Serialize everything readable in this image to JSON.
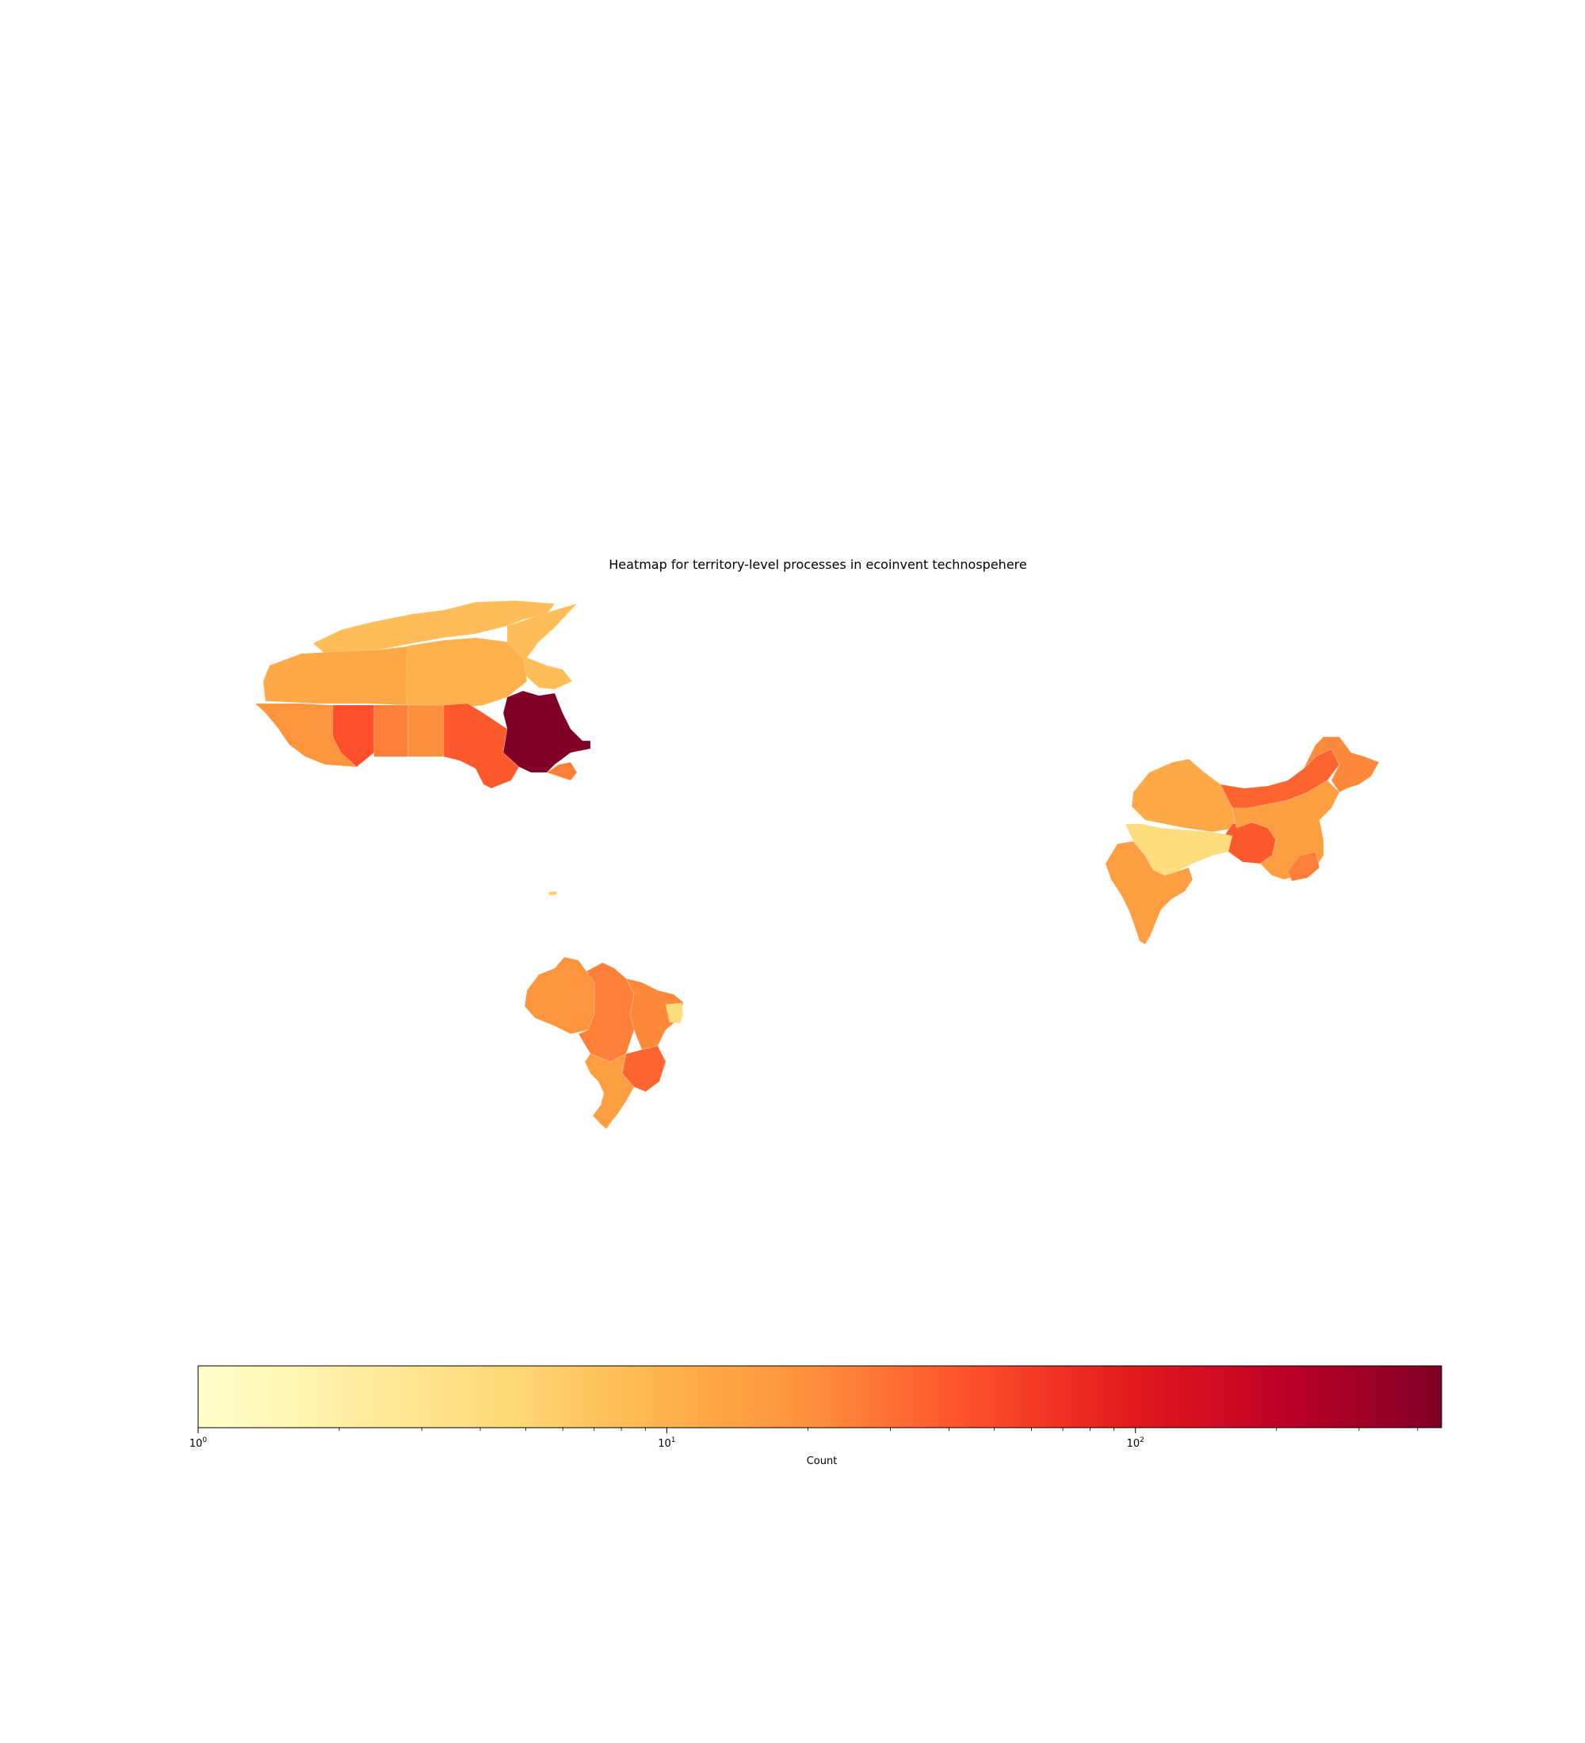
{
  "chart_data": {
    "type": "choropleth",
    "title": "Heatmap for territory-level processes in ecoinvent technospehere",
    "colormap": "YlOrRd",
    "colorbar": {
      "label": "Count",
      "scale": "log",
      "range": [
        1,
        450
      ],
      "orientation": "horizontal",
      "placement": "bottom",
      "ticks": [
        {
          "base": "10",
          "exp": "0",
          "value": 1
        },
        {
          "base": "10",
          "exp": "1",
          "value": 10
        },
        {
          "base": "10",
          "exp": "2",
          "value": 100
        }
      ]
    },
    "regions": [
      {
        "id": "canada-north-territories",
        "value": 8
      },
      {
        "id": "canada-north-islands",
        "value": 8
      },
      {
        "id": "canada-nw-territories",
        "value": 12
      },
      {
        "id": "canada-nunavut-mainland",
        "value": 10
      },
      {
        "id": "canada-west-coast",
        "value": 18
      },
      {
        "id": "canada-prairie-a",
        "value": 45
      },
      {
        "id": "canada-prairie-b",
        "value": 25
      },
      {
        "id": "canada-prairie-c",
        "value": 20
      },
      {
        "id": "canada-ontario",
        "value": 40
      },
      {
        "id": "canada-quebec",
        "value": 450
      },
      {
        "id": "canada-atlantic",
        "value": 25
      },
      {
        "id": "caribbean-islet",
        "value": 6
      },
      {
        "id": "brazil-north",
        "value": 18
      },
      {
        "id": "brazil-central",
        "value": 25
      },
      {
        "id": "brazil-northeast",
        "value": 22
      },
      {
        "id": "brazil-east-coast",
        "value": 4
      },
      {
        "id": "brazil-southeast",
        "value": 35
      },
      {
        "id": "brazil-south",
        "value": 15
      },
      {
        "id": "asia-west",
        "value": 12
      },
      {
        "id": "asia-north-band",
        "value": 35
      },
      {
        "id": "asia-northeast",
        "value": 22
      },
      {
        "id": "asia-central",
        "value": 40
      },
      {
        "id": "asia-east",
        "value": 15
      },
      {
        "id": "asia-himalaya",
        "value": 4
      },
      {
        "id": "asia-south-peninsula",
        "value": 15
      },
      {
        "id": "asia-southeast-coast",
        "value": 25
      }
    ]
  }
}
